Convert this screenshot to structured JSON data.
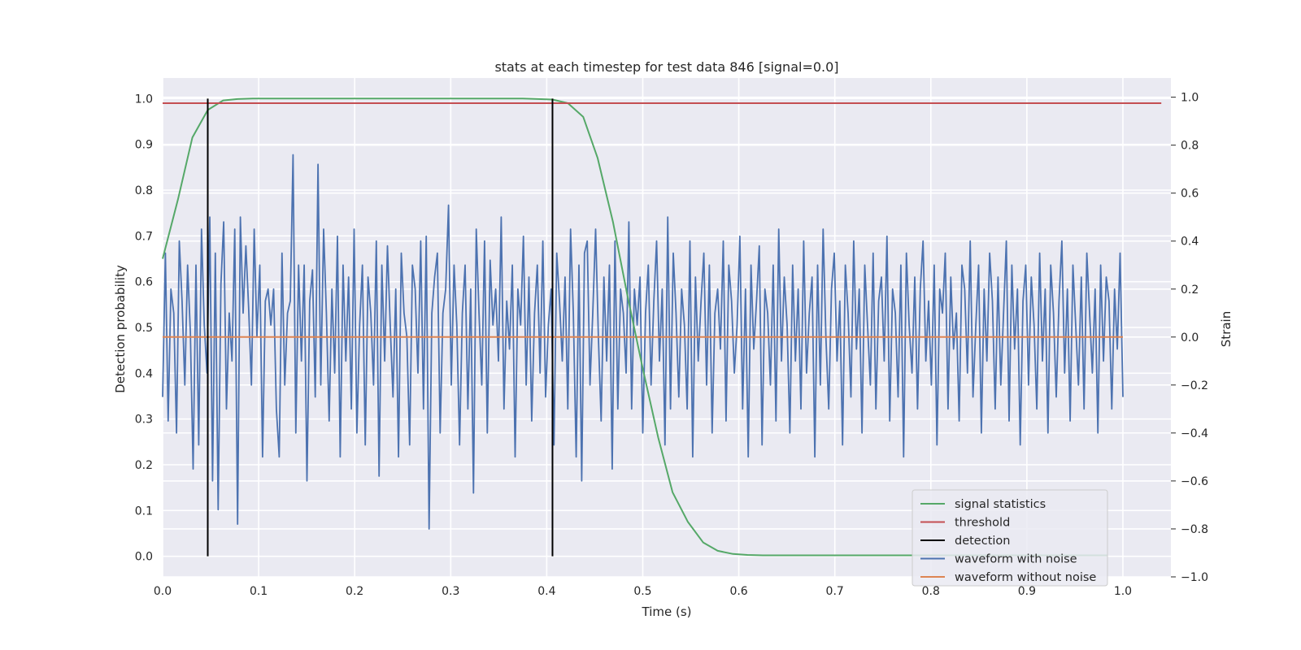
{
  "chart_data": {
    "type": "line",
    "title": "stats at each timestep for test data 846 [signal=0.0]",
    "xlabel": "Time (s)",
    "ylabel": "Detection probability",
    "y2label": "Strain",
    "xlim": [
      0.0,
      1.05
    ],
    "ylim": [
      -0.045,
      1.045
    ],
    "y2lim": [
      -1.0,
      1.08
    ],
    "xticks": [
      "0.0",
      "0.1",
      "0.2",
      "0.3",
      "0.4",
      "0.5",
      "0.6",
      "0.7",
      "0.8",
      "0.9",
      "1.0"
    ],
    "yticks": [
      "0.0",
      "0.1",
      "0.2",
      "0.3",
      "0.4",
      "0.5",
      "0.6",
      "0.7",
      "0.8",
      "0.9",
      "1.0"
    ],
    "y2ticks": [
      "−1.0",
      "−0.8",
      "−0.6",
      "−0.4",
      "−0.2",
      "0.0",
      "0.2",
      "0.4",
      "0.6",
      "0.8",
      "1.0"
    ],
    "grid": true,
    "legend_position": "lower-right",
    "series": [
      {
        "name": "signal statistics",
        "axis": "left",
        "color": "#55a868",
        "x": [
          0.0,
          0.016,
          0.031,
          0.047,
          0.063,
          0.078,
          0.094,
          0.109,
          0.125,
          0.141,
          0.156,
          0.172,
          0.188,
          0.203,
          0.219,
          0.234,
          0.25,
          0.266,
          0.281,
          0.297,
          0.313,
          0.328,
          0.344,
          0.359,
          0.375,
          0.391,
          0.406,
          0.422,
          0.438,
          0.453,
          0.469,
          0.484,
          0.5,
          0.516,
          0.531,
          0.547,
          0.563,
          0.578,
          0.594,
          0.609,
          0.625,
          0.641,
          0.656,
          0.672,
          0.688,
          0.703,
          0.719,
          0.734,
          0.75,
          0.766,
          0.781,
          0.797,
          0.813,
          0.828,
          0.844,
          0.859,
          0.875,
          0.891,
          0.906,
          0.922,
          0.938,
          0.953,
          0.969,
          0.984
        ],
        "y": [
          0.65,
          0.78,
          0.915,
          0.975,
          0.996,
          0.999,
          1.0,
          1.0,
          1.0,
          1.0,
          1.0,
          1.0,
          1.0,
          1.0,
          1.0,
          1.0,
          1.0,
          1.0,
          1.0,
          1.0,
          1.0,
          1.0,
          1.0,
          1.0,
          1.0,
          0.999,
          0.998,
          0.99,
          0.96,
          0.87,
          0.73,
          0.57,
          0.41,
          0.26,
          0.14,
          0.075,
          0.03,
          0.012,
          0.005,
          0.003,
          0.002,
          0.002,
          0.002,
          0.002,
          0.002,
          0.002,
          0.002,
          0.002,
          0.002,
          0.002,
          0.002,
          0.002,
          0.002,
          0.002,
          0.002,
          0.002,
          0.002,
          0.002,
          0.002,
          0.002,
          0.002,
          0.002,
          0.002,
          0.002
        ]
      },
      {
        "name": "threshold",
        "axis": "left",
        "color": "#c44e52",
        "x": [
          0.0,
          1.04
        ],
        "y": [
          0.99,
          0.99
        ]
      },
      {
        "name": "detection",
        "axis": "left",
        "color": "#000000",
        "type": "vlines",
        "x": [
          0.047,
          0.406
        ],
        "ymin": 0.0,
        "ymax": 1.0
      },
      {
        "name": "waveform with noise",
        "axis": "right",
        "color": "#4c72b0",
        "x_start": 0.0,
        "x_end": 1.0,
        "y": [
          -0.25,
          0.35,
          -0.35,
          0.2,
          0.1,
          -0.4,
          0.4,
          0.15,
          -0.2,
          0.3,
          0.02,
          -0.55,
          0.3,
          -0.45,
          0.45,
          0.05,
          -0.15,
          0.5,
          -0.6,
          0.35,
          -0.72,
          0.22,
          0.48,
          -0.3,
          0.1,
          -0.1,
          0.45,
          -0.78,
          0.5,
          0.1,
          0.38,
          0.12,
          -0.2,
          0.45,
          0.0,
          0.3,
          -0.5,
          0.15,
          0.2,
          0.05,
          0.2,
          -0.3,
          -0.5,
          0.35,
          -0.2,
          0.1,
          0.15,
          0.76,
          -0.4,
          0.3,
          -0.1,
          0.3,
          -0.6,
          0.15,
          0.28,
          -0.25,
          0.72,
          -0.2,
          0.45,
          0.1,
          -0.35,
          0.2,
          -0.15,
          0.42,
          -0.5,
          0.3,
          -0.1,
          0.25,
          -0.3,
          0.45,
          -0.4,
          0.05,
          0.3,
          -0.45,
          0.25,
          0.1,
          -0.2,
          0.4,
          -0.58,
          0.3,
          -0.1,
          0.38,
          0.05,
          -0.25,
          0.2,
          -0.5,
          0.35,
          0.1,
          0.0,
          -0.45,
          0.3,
          0.2,
          -0.15,
          0.4,
          -0.3,
          0.42,
          -0.8,
          0.1,
          0.25,
          0.35,
          -0.4,
          0.1,
          0.2,
          0.55,
          -0.2,
          0.3,
          0.05,
          -0.45,
          0.1,
          0.3,
          -0.3,
          0.2,
          -0.65,
          0.45,
          0.1,
          -0.2,
          0.4,
          -0.4,
          0.32,
          0.05,
          0.2,
          -0.1,
          0.5,
          -0.3,
          0.15,
          -0.05,
          0.3,
          -0.5,
          0.2,
          0.05,
          0.42,
          -0.2,
          0.25,
          -0.35,
          0.1,
          0.3,
          -0.15,
          0.4,
          -0.25,
          0.05,
          0.2,
          -0.45,
          0.35,
          0.15,
          -0.1,
          0.25,
          -0.3,
          0.45,
          0.1,
          -0.5,
          0.3,
          -0.6,
          0.35,
          0.4,
          -0.2,
          0.1,
          0.45,
          0.0,
          -0.35,
          0.25,
          -0.1,
          0.3,
          -0.55,
          0.4,
          -0.3,
          0.2,
          0.1,
          -0.15,
          0.48,
          -0.3,
          0.2,
          0.05,
          0.25,
          -0.4,
          0.1,
          0.3,
          -0.2,
          0.15,
          0.4,
          -0.1,
          0.2,
          -0.45,
          0.5,
          -0.3,
          0.35,
          0.1,
          -0.25,
          0.2,
          0.05,
          -0.3,
          0.4,
          -0.5,
          0.25,
          -0.1,
          0.15,
          0.35,
          -0.2,
          0.3,
          -0.4,
          0.1,
          0.2,
          -0.05,
          0.4,
          -0.35,
          0.3,
          0.15,
          -0.15,
          0.05,
          0.42,
          -0.3,
          0.2,
          -0.5,
          0.3,
          -0.05,
          0.15,
          0.38,
          -0.45,
          0.2,
          0.1,
          -0.2,
          0.3,
          -0.35,
          0.45,
          -0.1,
          0.25,
          0.05,
          -0.4,
          0.3,
          -0.1,
          0.2,
          -0.3,
          0.4,
          -0.15,
          0.1,
          0.25,
          -0.5,
          0.3,
          -0.2,
          0.45,
          0.0,
          -0.3,
          0.2,
          0.35,
          -0.1,
          0.15,
          -0.45,
          0.3,
          0.1,
          -0.25,
          0.4,
          -0.05,
          0.2,
          -0.4,
          0.3,
          0.05,
          -0.2,
          0.35,
          -0.3,
          0.15,
          0.25,
          -0.1,
          0.42,
          -0.35,
          0.2,
          0.1,
          -0.25,
          0.3,
          -0.5,
          0.35,
          0.05,
          -0.15,
          0.25,
          -0.3,
          0.2,
          0.4,
          -0.1,
          0.15,
          -0.2,
          0.3,
          -0.45,
          0.2,
          0.1,
          0.35,
          -0.3,
          0.25,
          -0.05,
          0.1,
          -0.35,
          0.3,
          0.2,
          -0.15,
          0.4,
          -0.25,
          0.05,
          0.3,
          -0.4,
          0.2,
          -0.1,
          0.35,
          0.15,
          -0.3,
          0.25,
          -0.2,
          0.1,
          0.4,
          -0.35,
          0.3,
          -0.05,
          0.2,
          -0.45,
          0.15,
          0.3,
          -0.2,
          0.25,
          0.05,
          -0.3,
          0.35,
          -0.1,
          0.2,
          -0.4,
          0.3,
          0.1,
          -0.25,
          0.15,
          0.4,
          -0.15,
          0.2,
          -0.35,
          0.3,
          0.05,
          -0.2,
          0.25,
          -0.3,
          0.35,
          0.1,
          -0.15,
          0.2,
          -0.4,
          0.3,
          -0.1,
          0.25,
          0.15,
          -0.3,
          0.2,
          -0.05,
          0.35,
          -0.25
        ],
        "note_count": 0
      },
      {
        "name": "waveform without noise",
        "axis": "right",
        "color": "#dd8452",
        "x": [
          0.0,
          1.0
        ],
        "y": [
          0.0,
          0.0
        ]
      }
    ]
  },
  "legend": {
    "items": [
      {
        "label": "signal statistics",
        "color": "#55a868"
      },
      {
        "label": "threshold",
        "color": "#c44e52"
      },
      {
        "label": "detection",
        "color": "#000000"
      },
      {
        "label": "waveform with noise",
        "color": "#4c72b0"
      },
      {
        "label": "waveform without noise",
        "color": "#dd8452"
      }
    ]
  },
  "colors": {
    "plot_background": "#eaeaf2",
    "grid": "#ffffff",
    "text": "#262626"
  }
}
